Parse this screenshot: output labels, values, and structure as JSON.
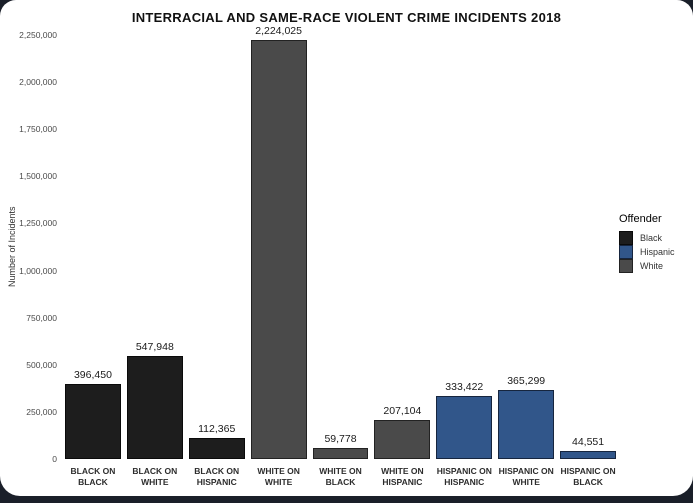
{
  "colors": {
    "page_background": "#1a1f29",
    "card_background": "#ffffff"
  },
  "chart_data": {
    "type": "bar",
    "title": "INTERRACIAL AND SAME-RACE VIOLENT CRIME INCIDENTS 2018",
    "xlabel": "",
    "ylabel": "Number of Incidents",
    "ylim": [
      0,
      2250000
    ],
    "grid": false,
    "yticks": [
      "0",
      "250,000",
      "500,000",
      "750,000",
      "1,000,000",
      "1,250,000",
      "1,500,000",
      "1,750,000",
      "2,000,000",
      "2,250,000"
    ],
    "categories": [
      "BLACK ON BLACK",
      "BLACK ON WHITE",
      "BLACK ON HISPANIC",
      "WHITE ON WHITE",
      "WHITE ON BLACK",
      "WHITE ON HISPANIC",
      "HISPANIC ON HISPANIC",
      "HISPANIC ON WHITE",
      "HISPANIC ON BLACK"
    ],
    "values": [
      396450,
      547948,
      112365,
      2224025,
      59778,
      207104,
      333422,
      365299,
      44551
    ],
    "bars": [
      {
        "label_line1": "BLACK ON",
        "label_line2": "BLACK",
        "value": 396450,
        "value_label": "396,450",
        "offender": "Black"
      },
      {
        "label_line1": "BLACK ON",
        "label_line2": "WHITE",
        "value": 547948,
        "value_label": "547,948",
        "offender": "Black"
      },
      {
        "label_line1": "BLACK ON",
        "label_line2": "HISPANIC",
        "value": 112365,
        "value_label": "112,365",
        "offender": "Black"
      },
      {
        "label_line1": "WHITE ON",
        "label_line2": "WHITE",
        "value": 2224025,
        "value_label": "2,224,025",
        "offender": "White"
      },
      {
        "label_line1": "WHITE ON",
        "label_line2": "BLACK",
        "value": 59778,
        "value_label": "59,778",
        "offender": "White"
      },
      {
        "label_line1": "WHITE ON",
        "label_line2": "HISPANIC",
        "value": 207104,
        "value_label": "207,104",
        "offender": "White"
      },
      {
        "label_line1": "HISPANIC ON",
        "label_line2": "HISPANIC",
        "value": 333422,
        "value_label": "333,422",
        "offender": "Hispanic"
      },
      {
        "label_line1": "HISPANIC ON",
        "label_line2": "WHITE",
        "value": 365299,
        "value_label": "365,299",
        "offender": "Hispanic"
      },
      {
        "label_line1": "HISPANIC ON",
        "label_line2": "BLACK",
        "value": 44551,
        "value_label": "44,551",
        "offender": "Hispanic"
      }
    ],
    "series_colors": {
      "Black": "#1d1d1d",
      "Hispanic": "#31568a",
      "White": "#4a4a4a"
    },
    "series_borders": {
      "Black": "#0a0a0a",
      "Hispanic": "#16253e",
      "White": "#222222"
    },
    "legend": {
      "title": "Offender",
      "position": "right",
      "entries": [
        {
          "label": "Black",
          "color": "#1d1d1d",
          "border": "#0a0a0a"
        },
        {
          "label": "Hispanic",
          "color": "#31568a",
          "border": "#16253e"
        },
        {
          "label": "White",
          "color": "#4a4a4a",
          "border": "#222222"
        }
      ]
    }
  }
}
